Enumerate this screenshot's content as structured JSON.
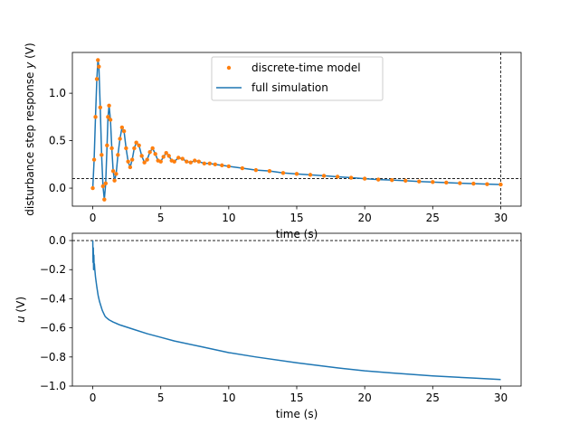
{
  "chart_data": [
    {
      "type": "line",
      "xlabel": "time (s)",
      "ylabel": "disturbance step response y (V)",
      "ylabel_parts": {
        "prefix": "disturbance step response ",
        "var": "y",
        "suffix": " (V)"
      },
      "xlim": [
        -1.5,
        31.5
      ],
      "ylim": [
        -0.19,
        1.43
      ],
      "xticks": [
        0,
        5,
        10,
        15,
        20,
        25,
        30
      ],
      "xtick_labels": [
        "0",
        "5",
        "10",
        "15",
        "20",
        "25",
        "30"
      ],
      "yticks": [
        0.0,
        0.5,
        1.0
      ],
      "ytick_labels": [
        "0.0",
        "0.5",
        "1.0"
      ],
      "hlines": [
        0.1
      ],
      "vlines": [
        30
      ],
      "legend_position": "upper center",
      "grid": false,
      "series": [
        {
          "name": "discrete-time model",
          "style": "markers",
          "color": "#ff7f0e",
          "x": [
            0,
            0.1,
            0.2,
            0.3,
            0.38,
            0.45,
            0.55,
            0.65,
            0.75,
            0.85,
            0.95,
            1.05,
            1.12,
            1.2,
            1.3,
            1.4,
            1.5,
            1.6,
            1.72,
            1.85,
            2.0,
            2.15,
            2.3,
            2.45,
            2.6,
            2.75,
            2.9,
            3.05,
            3.2,
            3.4,
            3.6,
            3.8,
            4.0,
            4.2,
            4.4,
            4.6,
            4.8,
            5.0,
            5.2,
            5.4,
            5.6,
            5.8,
            6.0,
            6.3,
            6.6,
            6.9,
            7.2,
            7.5,
            7.8,
            8.2,
            8.6,
            9.0,
            9.5,
            10,
            11,
            12,
            13,
            14,
            15,
            16,
            17,
            18,
            19,
            20,
            21,
            22,
            23,
            24,
            25,
            26,
            27,
            28,
            29,
            30
          ],
          "y": [
            0.0,
            0.3,
            0.75,
            1.15,
            1.35,
            1.28,
            0.85,
            0.35,
            0.02,
            -0.12,
            0.05,
            0.45,
            0.75,
            0.87,
            0.72,
            0.42,
            0.18,
            0.08,
            0.15,
            0.35,
            0.52,
            0.64,
            0.6,
            0.42,
            0.28,
            0.22,
            0.3,
            0.42,
            0.48,
            0.45,
            0.34,
            0.27,
            0.3,
            0.38,
            0.42,
            0.36,
            0.29,
            0.28,
            0.33,
            0.37,
            0.34,
            0.29,
            0.28,
            0.32,
            0.31,
            0.28,
            0.27,
            0.29,
            0.28,
            0.26,
            0.26,
            0.25,
            0.24,
            0.23,
            0.21,
            0.19,
            0.18,
            0.16,
            0.15,
            0.14,
            0.13,
            0.12,
            0.11,
            0.1,
            0.09,
            0.085,
            0.078,
            0.07,
            0.064,
            0.058,
            0.052,
            0.047,
            0.042,
            0.038
          ]
        },
        {
          "name": "full simulation",
          "style": "line",
          "color": "#1f77b4",
          "x": [
            0,
            0.1,
            0.2,
            0.3,
            0.38,
            0.45,
            0.55,
            0.65,
            0.75,
            0.85,
            0.95,
            1.05,
            1.12,
            1.2,
            1.3,
            1.4,
            1.5,
            1.6,
            1.72,
            1.85,
            2.0,
            2.15,
            2.3,
            2.45,
            2.6,
            2.75,
            2.9,
            3.05,
            3.2,
            3.4,
            3.6,
            3.8,
            4.0,
            4.2,
            4.4,
            4.6,
            4.8,
            5.0,
            5.2,
            5.4,
            5.6,
            5.8,
            6.0,
            6.3,
            6.6,
            6.9,
            7.2,
            7.5,
            7.8,
            8.2,
            8.6,
            9.0,
            9.5,
            10,
            11,
            12,
            13,
            14,
            15,
            16,
            17,
            18,
            19,
            20,
            21,
            22,
            23,
            24,
            25,
            26,
            27,
            28,
            29,
            30
          ],
          "y": [
            0.0,
            0.3,
            0.75,
            1.15,
            1.35,
            1.28,
            0.85,
            0.35,
            0.02,
            -0.12,
            0.05,
            0.45,
            0.75,
            0.87,
            0.72,
            0.42,
            0.18,
            0.08,
            0.15,
            0.35,
            0.52,
            0.64,
            0.6,
            0.42,
            0.28,
            0.22,
            0.3,
            0.42,
            0.48,
            0.45,
            0.34,
            0.27,
            0.3,
            0.38,
            0.42,
            0.36,
            0.29,
            0.28,
            0.33,
            0.37,
            0.34,
            0.29,
            0.28,
            0.32,
            0.31,
            0.28,
            0.27,
            0.29,
            0.28,
            0.26,
            0.26,
            0.25,
            0.24,
            0.23,
            0.21,
            0.19,
            0.18,
            0.16,
            0.15,
            0.14,
            0.13,
            0.12,
            0.11,
            0.1,
            0.09,
            0.085,
            0.078,
            0.07,
            0.064,
            0.058,
            0.052,
            0.047,
            0.042,
            0.038
          ]
        }
      ]
    },
    {
      "type": "line",
      "xlabel": "time (s)",
      "ylabel": "u (V)",
      "ylabel_parts": {
        "prefix": "",
        "var": "u",
        "suffix": " (V)"
      },
      "xlim": [
        -1.5,
        31.5
      ],
      "ylim": [
        -1.0,
        0.05
      ],
      "xticks": [
        0,
        5,
        10,
        15,
        20,
        25,
        30
      ],
      "xtick_labels": [
        "0",
        "5",
        "10",
        "15",
        "20",
        "25",
        "30"
      ],
      "yticks": [
        0.0,
        -0.2,
        -0.4,
        -0.6,
        -0.8,
        -1.0
      ],
      "ytick_labels": [
        "0.0",
        "−0.2",
        "−0.4",
        "−0.6",
        "−0.8",
        "−1.0"
      ],
      "hlines": [
        0.0
      ],
      "vlines": [],
      "grid": false,
      "series": [
        {
          "style": "line",
          "color": "#1f77b4",
          "x": [
            0,
            0.02,
            0.04,
            0.06,
            0.08,
            0.1,
            0.12,
            0.15,
            0.2,
            0.3,
            0.4,
            0.5,
            0.6,
            0.7,
            0.8,
            0.9,
            1.0,
            1.2,
            1.5,
            2,
            3,
            4,
            5,
            6,
            8,
            10,
            12,
            15,
            18,
            20,
            22,
            25,
            28,
            30
          ],
          "y": [
            0.0,
            -0.15,
            -0.05,
            -0.2,
            -0.1,
            -0.18,
            -0.16,
            -0.2,
            -0.25,
            -0.32,
            -0.38,
            -0.42,
            -0.45,
            -0.48,
            -0.5,
            -0.52,
            -0.53,
            -0.545,
            -0.56,
            -0.58,
            -0.61,
            -0.64,
            -0.665,
            -0.69,
            -0.73,
            -0.77,
            -0.8,
            -0.84,
            -0.875,
            -0.895,
            -0.91,
            -0.93,
            -0.945,
            -0.955
          ]
        }
      ]
    }
  ]
}
